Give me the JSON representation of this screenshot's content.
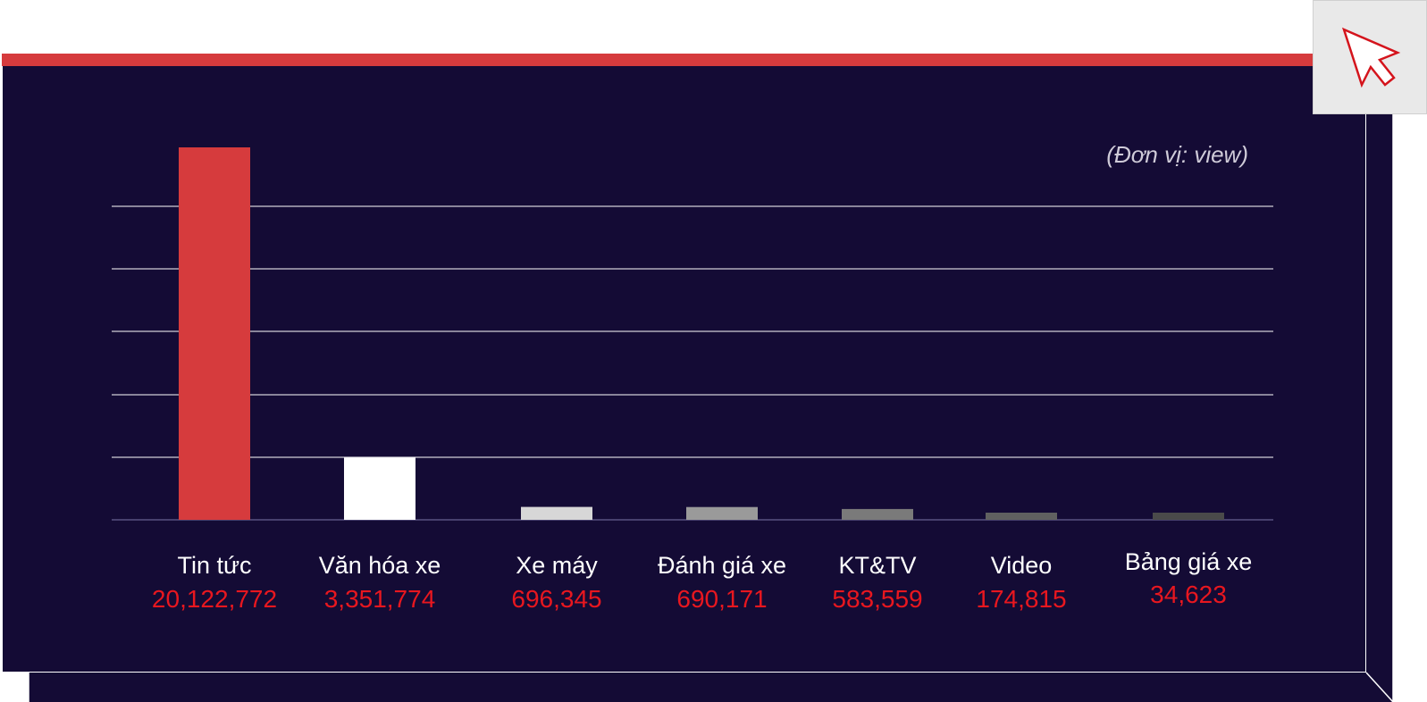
{
  "chart_data": {
    "type": "bar",
    "title": "",
    "xlabel": "",
    "ylabel": "",
    "unit_note": "(Đơn vị: view)",
    "categories": [
      "Tin tức",
      "Văn hóa xe",
      "Xe máy",
      "Đánh giá xe",
      "KT&TV",
      "Video",
      "Bảng giá xe"
    ],
    "values": [
      20122772,
      3351774,
      696345,
      690171,
      583559,
      174815,
      34623
    ],
    "value_labels": [
      "20,122,772",
      "3,351,774",
      "696,345",
      "690,171",
      "583,559",
      "174,815",
      "34,623"
    ],
    "bar_colors": [
      "#d63b3d",
      "#ffffff",
      "#d7d7d7",
      "#9a9a9a",
      "#7a7a7a",
      "#606060",
      "#4a4a4a"
    ],
    "grid": true,
    "legend": "none"
  },
  "colors": {
    "background": "#140b35",
    "accent": "#d63b3d",
    "value_text": "#e8171f",
    "label_text": "#ffffff"
  },
  "icons": {
    "corner": "cursor-arrow-icon"
  }
}
